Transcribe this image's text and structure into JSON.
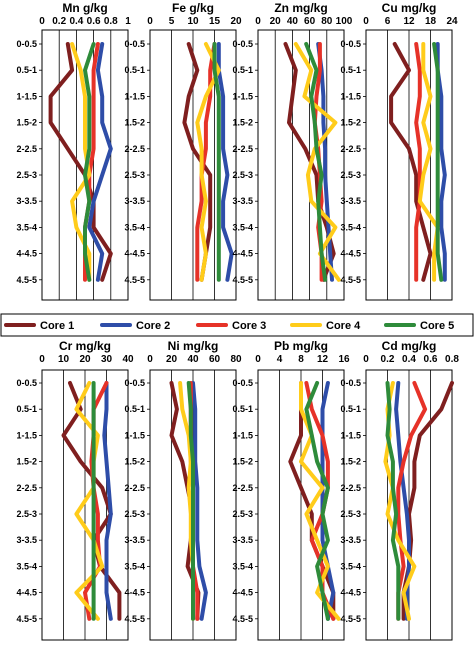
{
  "depth_labels": [
    "0-0.5",
    "0.5-1",
    "1-1.5",
    "1.5-2",
    "2-2.5",
    "2.5-3",
    "3-3.5",
    "3.5-4",
    "4-4.5",
    "4.5-5"
  ],
  "legend": [
    {
      "name": "Core 1",
      "color": "#7f1f1f"
    },
    {
      "name": "Core 2",
      "color": "#2e4da8"
    },
    {
      "name": "Core 3",
      "color": "#e63228"
    },
    {
      "name": "Core 4",
      "color": "#ffcc1a"
    },
    {
      "name": "Core 5",
      "color": "#2e8b3a"
    }
  ],
  "chart_data": [
    {
      "type": "line",
      "title": "Mn g/kg",
      "xlim": [
        0,
        1
      ],
      "ticks": [
        "0",
        "0.2",
        "0.4",
        "0.6",
        "0.8",
        "1"
      ],
      "series": [
        {
          "name": "Core 1",
          "values": [
            0.3,
            0.35,
            0.1,
            0.1,
            0.3,
            0.5,
            0.6,
            0.6,
            0.8,
            0.7
          ]
        },
        {
          "name": "Core 2",
          "values": [
            0.7,
            0.65,
            0.7,
            0.7,
            0.8,
            0.7,
            0.6,
            0.55,
            0.7,
            0.65
          ]
        },
        {
          "name": "Core 3",
          "values": [
            0.65,
            0.6,
            0.6,
            0.6,
            0.6,
            0.55,
            0.55,
            0.5,
            0.5,
            0.5
          ]
        },
        {
          "name": "Core 4",
          "values": [
            0.35,
            0.45,
            0.5,
            0.5,
            0.5,
            0.55,
            0.35,
            0.4,
            0.55,
            0.55
          ]
        },
        {
          "name": "Core 5",
          "values": [
            0.6,
            0.5,
            0.55,
            0.55,
            0.55,
            0.5,
            0.55,
            0.5,
            0.5,
            0.55
          ]
        }
      ]
    },
    {
      "type": "line",
      "title": "Fe g/kg",
      "xlim": [
        0,
        20
      ],
      "ticks": [
        "0",
        "5",
        "10",
        "15",
        "20"
      ],
      "series": [
        {
          "name": "Core 1",
          "values": [
            9,
            11,
            9,
            8,
            10,
            14,
            14,
            14,
            13,
            12
          ]
        },
        {
          "name": "Core 2",
          "values": [
            16,
            16,
            17,
            17,
            17,
            18,
            17,
            17,
            19,
            18
          ]
        },
        {
          "name": "Core 3",
          "values": [
            15,
            14,
            14,
            13,
            13,
            12,
            12,
            11,
            11,
            11
          ]
        },
        {
          "name": "Core 4",
          "values": [
            13,
            16,
            13,
            11,
            12,
            12,
            13,
            12,
            13,
            12
          ]
        },
        {
          "name": "Core 5",
          "values": [
            15,
            15,
            16,
            16,
            16,
            16,
            16,
            16,
            16,
            16
          ]
        }
      ]
    },
    {
      "type": "line",
      "title": "Zn mg/kg",
      "xlim": [
        0,
        100
      ],
      "ticks": [
        "0",
        "20",
        "40",
        "60",
        "80",
        "100"
      ],
      "series": [
        {
          "name": "Core 1",
          "values": [
            32,
            44,
            40,
            36,
            55,
            68,
            70,
            80,
            88,
            76
          ]
        },
        {
          "name": "Core 2",
          "values": [
            70,
            74,
            76,
            76,
            78,
            78,
            80,
            82,
            84,
            86
          ]
        },
        {
          "name": "Core 3",
          "values": [
            72,
            72,
            68,
            66,
            70,
            72,
            74,
            70,
            74,
            74
          ]
        },
        {
          "name": "Core 4",
          "values": [
            44,
            62,
            54,
            90,
            66,
            58,
            62,
            90,
            72,
            94
          ]
        },
        {
          "name": "Core 5",
          "values": [
            56,
            68,
            62,
            66,
            68,
            74,
            70,
            72,
            74,
            78
          ]
        }
      ]
    },
    {
      "type": "line",
      "title": "Cu mg/kg",
      "xlim": [
        0,
        24
      ],
      "ticks": [
        "0",
        "6",
        "12",
        "18",
        "24"
      ],
      "series": [
        {
          "name": "Core 1",
          "values": [
            8,
            12,
            7,
            7,
            12,
            14,
            14,
            16,
            18,
            16
          ]
        },
        {
          "name": "Core 2",
          "values": [
            20,
            20,
            21,
            21,
            21,
            22,
            21,
            21,
            22,
            22
          ]
        },
        {
          "name": "Core 3",
          "values": [
            14,
            15,
            15,
            14,
            15,
            15,
            15,
            14,
            14,
            14
          ]
        },
        {
          "name": "Core 4",
          "values": [
            16,
            16,
            18,
            16,
            18,
            16,
            15,
            20,
            19,
            19
          ]
        },
        {
          "name": "Core 5",
          "values": [
            19,
            20,
            20,
            20,
            20,
            20,
            20,
            20,
            20,
            21
          ]
        }
      ]
    },
    {
      "type": "line",
      "title": "Cr mg/kg",
      "xlim": [
        0,
        40
      ],
      "ticks": [
        "0",
        "10",
        "20",
        "30",
        "40"
      ],
      "series": [
        {
          "name": "Core 1",
          "values": [
            13,
            18,
            10,
            18,
            28,
            32,
            24,
            27,
            36,
            36
          ]
        },
        {
          "name": "Core 2",
          "values": [
            30,
            30,
            29,
            30,
            31,
            32,
            30,
            30,
            30,
            32
          ]
        },
        {
          "name": "Core 3",
          "values": [
            30,
            24,
            24,
            23,
            24,
            26,
            26,
            27,
            20,
            22
          ]
        },
        {
          "name": "Core 4",
          "values": [
            22,
            16,
            26,
            24,
            24,
            16,
            24,
            28,
            16,
            26
          ]
        },
        {
          "name": "Core 5",
          "values": [
            24,
            24,
            24,
            24,
            24,
            24,
            24,
            24,
            24,
            24
          ]
        }
      ]
    },
    {
      "type": "line",
      "title": "Ni mg/kg",
      "xlim": [
        0,
        80
      ],
      "ticks": [
        "0",
        "20",
        "40",
        "60",
        "80"
      ],
      "series": [
        {
          "name": "Core 1",
          "values": [
            20,
            25,
            20,
            30,
            35,
            40,
            38,
            35,
            45,
            44
          ]
        },
        {
          "name": "Core 2",
          "values": [
            40,
            42,
            42,
            42,
            44,
            44,
            44,
            46,
            52,
            48
          ]
        },
        {
          "name": "Core 3",
          "values": [
            38,
            38,
            38,
            38,
            40,
            40,
            40,
            40,
            44,
            44
          ]
        },
        {
          "name": "Core 4",
          "values": [
            28,
            30,
            36,
            38,
            36,
            38,
            38,
            40,
            40,
            40
          ]
        },
        {
          "name": "Core 5",
          "values": [
            36,
            38,
            38,
            40,
            40,
            40,
            40,
            40,
            40,
            40
          ]
        }
      ]
    },
    {
      "type": "line",
      "title": "Pb mg/kg",
      "xlim": [
        0,
        16
      ],
      "ticks": [
        "0",
        "4",
        "8",
        "12",
        "16"
      ],
      "series": [
        {
          "name": "Core 1",
          "values": [
            8,
            8,
            8,
            6,
            8,
            10,
            10,
            12,
            14,
            14
          ]
        },
        {
          "name": "Core 2",
          "values": [
            13,
            12,
            12,
            12,
            12,
            12,
            12,
            13,
            14,
            13
          ]
        },
        {
          "name": "Core 3",
          "values": [
            9,
            10,
            12,
            13,
            13,
            12,
            10,
            12,
            12,
            14
          ]
        },
        {
          "name": "Core 4",
          "values": [
            8,
            8,
            10,
            8,
            12,
            9,
            11,
            13,
            11,
            15
          ]
        },
        {
          "name": "Core 5",
          "values": [
            11,
            9,
            10,
            11,
            13,
            12,
            13,
            11,
            12,
            13
          ]
        }
      ]
    },
    {
      "type": "line",
      "title": "Cd mg/kg",
      "xlim": [
        0,
        0.8
      ],
      "ticks": [
        "0",
        "0.2",
        "0.4",
        "0.6",
        "0.8"
      ],
      "series": [
        {
          "name": "Core 1",
          "values": [
            0.8,
            0.7,
            0.5,
            0.45,
            0.45,
            0.4,
            0.42,
            0.4,
            0.35,
            0.35
          ]
        },
        {
          "name": "Core 2",
          "values": [
            0.3,
            0.28,
            0.3,
            0.32,
            0.35,
            0.38,
            0.4,
            0.4,
            0.38,
            0.38
          ]
        },
        {
          "name": "Core 3",
          "values": [
            0.45,
            0.55,
            0.42,
            0.35,
            0.3,
            0.3,
            0.32,
            0.35,
            0.3,
            0.3
          ]
        },
        {
          "name": "Core 4",
          "values": [
            0.25,
            0.2,
            0.22,
            0.18,
            0.25,
            0.2,
            0.3,
            0.45,
            0.35,
            0.4
          ]
        },
        {
          "name": "Core 5",
          "values": [
            0.2,
            0.22,
            0.2,
            0.25,
            0.25,
            0.28,
            0.25,
            0.3,
            0.3,
            0.3
          ]
        }
      ]
    }
  ]
}
